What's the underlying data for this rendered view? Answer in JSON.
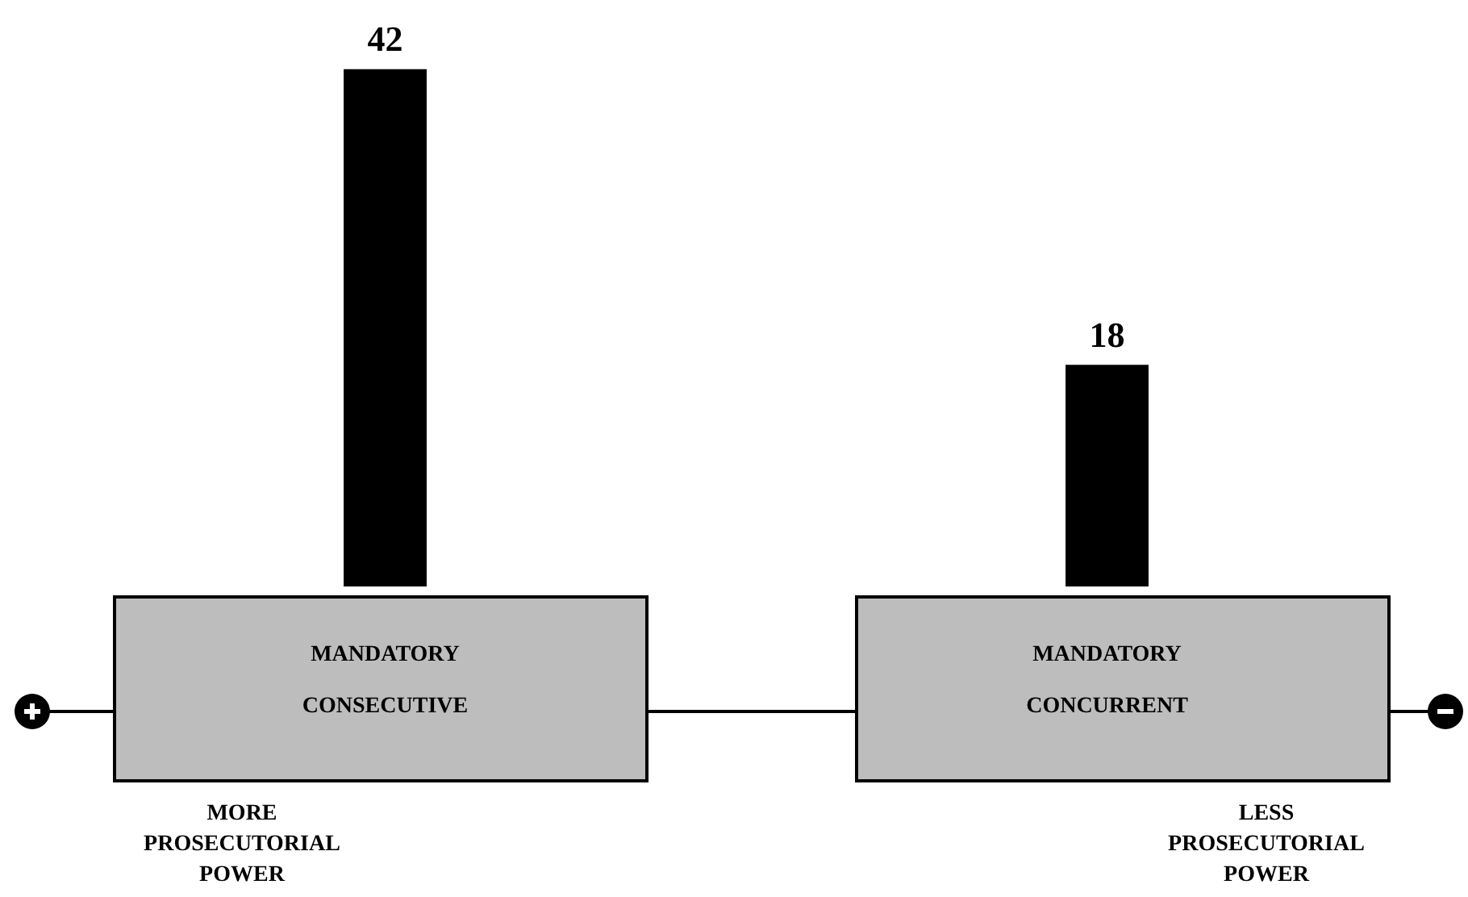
{
  "chart_data": {
    "type": "bar",
    "categories": [
      "MANDATORY CONSECUTIVE",
      "MANDATORY CONCURRENT"
    ],
    "values": [
      42,
      18
    ],
    "color": "#000000",
    "data_labels": true,
    "annotations": [
      "MORE PROSECUTORIAL POWER",
      "LESS PROSECUTORIAL POWER"
    ]
  }
}
